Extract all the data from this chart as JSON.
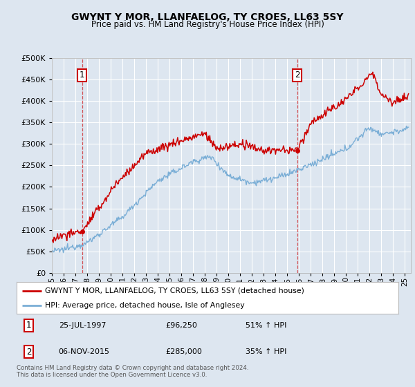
{
  "title": "GWYNT Y MOR, LLANFAELOG, TY CROES, LL63 5SY",
  "subtitle": "Price paid vs. HM Land Registry's House Price Index (HPI)",
  "bg_color": "#dde6f0",
  "red_color": "#cc0000",
  "blue_color": "#7aaed6",
  "marker1_date_x": 1997.57,
  "marker2_date_x": 2015.84,
  "marker1_y": 96250,
  "marker2_y": 285000,
  "legend_label1": "GWYNT Y MOR, LLANFAELOG, TY CROES, LL63 5SY (detached house)",
  "legend_label2": "HPI: Average price, detached house, Isle of Anglesey",
  "footer": "Contains HM Land Registry data © Crown copyright and database right 2024.\nThis data is licensed under the Open Government Licence v3.0.",
  "ylim": [
    0,
    500000
  ],
  "xlim_start": 1995.0,
  "xlim_end": 2025.5
}
